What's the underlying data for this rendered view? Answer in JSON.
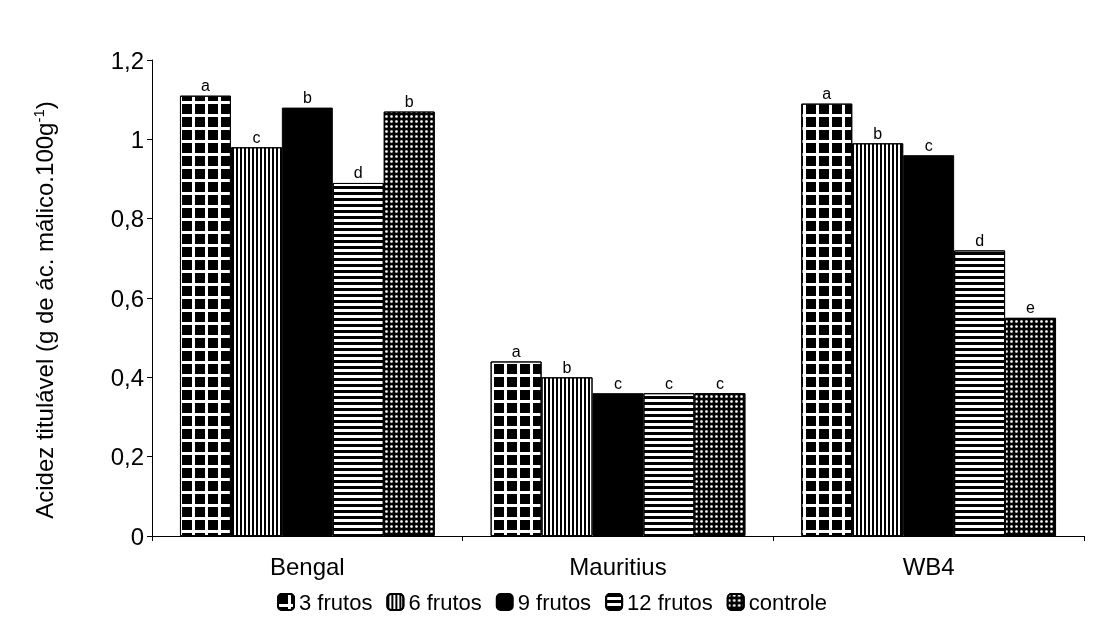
{
  "chart_data": {
    "type": "bar",
    "ylabel": "Acidez titulável (g de ác. málico.100g$^{-1}$)",
    "categories": [
      "Bengal",
      "Mauritius",
      "WB4"
    ],
    "series": [
      {
        "name": "3 frutos",
        "color": "#000000",
        "values": [
          1.11,
          0.44,
          1.09
        ],
        "value_labels": [
          "a",
          "a",
          "a"
        ]
      },
      {
        "name": "6 frutos",
        "color": "#000000",
        "values": [
          0.98,
          0.4,
          0.99
        ],
        "value_labels": [
          "c",
          "b",
          "b"
        ]
      },
      {
        "name": "9 frutos",
        "color": "#000000",
        "values": [
          1.08,
          0.36,
          0.96
        ],
        "value_labels": [
          "b",
          "c",
          "c"
        ]
      },
      {
        "name": "12 frutos",
        "color": "#000000",
        "values": [
          0.89,
          0.36,
          0.72
        ],
        "value_labels": [
          "d",
          "c",
          "d"
        ]
      },
      {
        "name": "controle",
        "color": "#000000",
        "values": [
          1.07,
          0.36,
          0.55
        ],
        "value_labels": [
          "b",
          "c",
          "e"
        ]
      }
    ],
    "ylim": [
      0,
      1.2
    ],
    "yticks": [
      0,
      {
        "value": 0.2,
        "label": "0,2"
      },
      {
        "value": 0.4,
        "label": "0,4"
      },
      {
        "value": 0.6,
        "label": "0,6"
      },
      {
        "value": 0.8,
        "label": "0,8"
      },
      1,
      {
        "value": 1.2,
        "label": "1,2"
      }
    ],
    "grid": false,
    "legend": "bottom"
  }
}
